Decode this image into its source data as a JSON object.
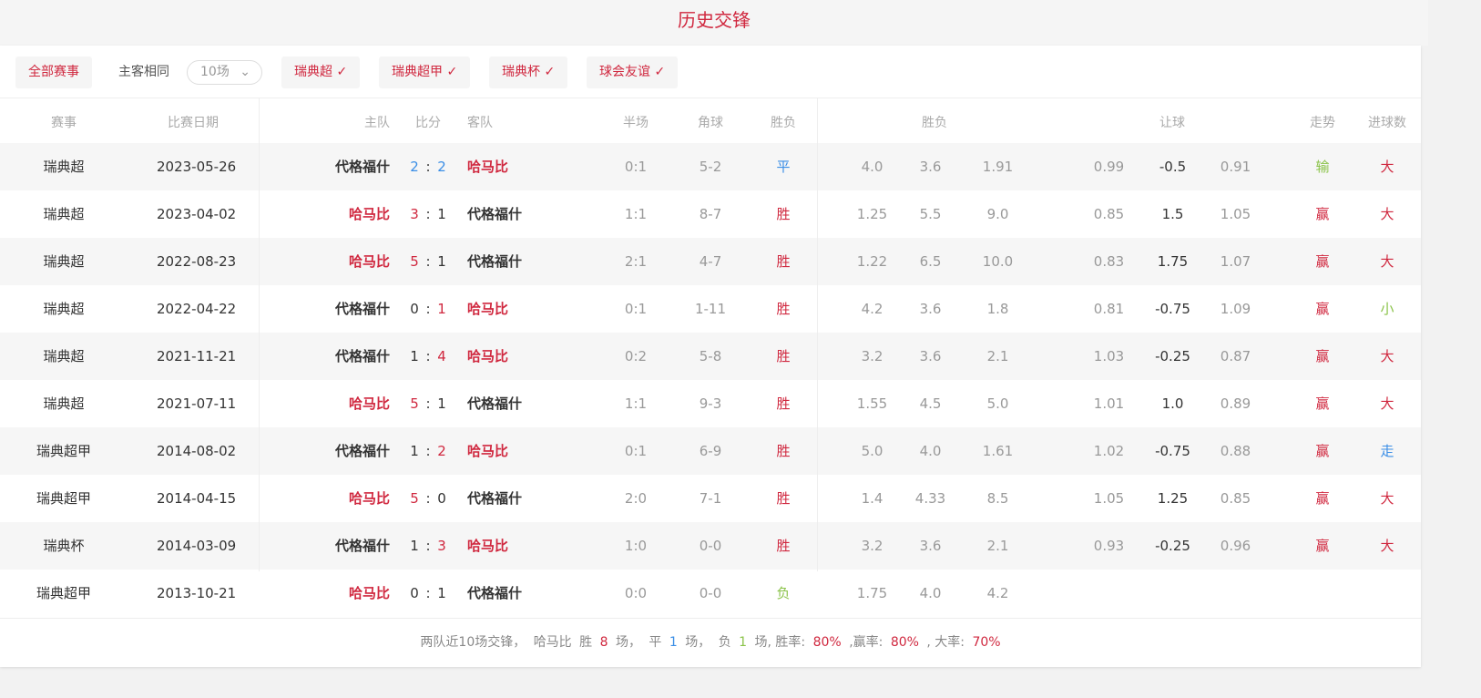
{
  "title": "历史交锋",
  "filters": {
    "all": "全部赛事",
    "same_home_away": "主客相同",
    "count_select": "10场",
    "leagues": [
      "瑞典超",
      "瑞典超甲",
      "瑞典杯",
      "球会友谊"
    ]
  },
  "headers": {
    "league": "赛事",
    "date": "比赛日期",
    "home": "主队",
    "score": "比分",
    "away": "客队",
    "half": "半场",
    "corner": "角球",
    "result": "胜负",
    "odds": "胜负",
    "handicap": "让球",
    "trend": "走势",
    "goals": "进球数"
  },
  "colors": {
    "accent": "#d0283f",
    "draw": "#3a8ee6",
    "lose": "#8bc34a"
  },
  "rows": [
    {
      "league": "瑞典超",
      "date": "2023-05-26",
      "home": "代格福什",
      "hs": "2",
      "as": "2",
      "away": "哈马比",
      "half": "0:1",
      "corner": "5-2",
      "result": "平",
      "o1": "4.0",
      "o2": "3.6",
      "o3": "1.91",
      "h1": "0.99",
      "h2": "-0.5",
      "h3": "0.91",
      "trend": "输",
      "goals": "大"
    },
    {
      "league": "瑞典超",
      "date": "2023-04-02",
      "home": "哈马比",
      "hs": "3",
      "as": "1",
      "away": "代格福什",
      "half": "1:1",
      "corner": "8-7",
      "result": "胜",
      "o1": "1.25",
      "o2": "5.5",
      "o3": "9.0",
      "h1": "0.85",
      "h2": "1.5",
      "h3": "1.05",
      "trend": "赢",
      "goals": "大"
    },
    {
      "league": "瑞典超",
      "date": "2022-08-23",
      "home": "哈马比",
      "hs": "5",
      "as": "1",
      "away": "代格福什",
      "half": "2:1",
      "corner": "4-7",
      "result": "胜",
      "o1": "1.22",
      "o2": "6.5",
      "o3": "10.0",
      "h1": "0.83",
      "h2": "1.75",
      "h3": "1.07",
      "trend": "赢",
      "goals": "大"
    },
    {
      "league": "瑞典超",
      "date": "2022-04-22",
      "home": "代格福什",
      "hs": "0",
      "as": "1",
      "away": "哈马比",
      "half": "0:1",
      "corner": "1-11",
      "result": "胜",
      "o1": "4.2",
      "o2": "3.6",
      "o3": "1.8",
      "h1": "0.81",
      "h2": "-0.75",
      "h3": "1.09",
      "trend": "赢",
      "goals": "小"
    },
    {
      "league": "瑞典超",
      "date": "2021-11-21",
      "home": "代格福什",
      "hs": "1",
      "as": "4",
      "away": "哈马比",
      "half": "0:2",
      "corner": "5-8",
      "result": "胜",
      "o1": "3.2",
      "o2": "3.6",
      "o3": "2.1",
      "h1": "1.03",
      "h2": "-0.25",
      "h3": "0.87",
      "trend": "赢",
      "goals": "大"
    },
    {
      "league": "瑞典超",
      "date": "2021-07-11",
      "home": "哈马比",
      "hs": "5",
      "as": "1",
      "away": "代格福什",
      "half": "1:1",
      "corner": "9-3",
      "result": "胜",
      "o1": "1.55",
      "o2": "4.5",
      "o3": "5.0",
      "h1": "1.01",
      "h2": "1.0",
      "h3": "0.89",
      "trend": "赢",
      "goals": "大"
    },
    {
      "league": "瑞典超甲",
      "date": "2014-08-02",
      "home": "代格福什",
      "hs": "1",
      "as": "2",
      "away": "哈马比",
      "half": "0:1",
      "corner": "6-9",
      "result": "胜",
      "o1": "5.0",
      "o2": "4.0",
      "o3": "1.61",
      "h1": "1.02",
      "h2": "-0.75",
      "h3": "0.88",
      "trend": "赢",
      "goals": "走"
    },
    {
      "league": "瑞典超甲",
      "date": "2014-04-15",
      "home": "哈马比",
      "hs": "5",
      "as": "0",
      "away": "代格福什",
      "half": "2:0",
      "corner": "7-1",
      "result": "胜",
      "o1": "1.4",
      "o2": "4.33",
      "o3": "8.5",
      "h1": "1.05",
      "h2": "1.25",
      "h3": "0.85",
      "trend": "赢",
      "goals": "大"
    },
    {
      "league": "瑞典杯",
      "date": "2014-03-09",
      "home": "代格福什",
      "hs": "1",
      "as": "3",
      "away": "哈马比",
      "half": "1:0",
      "corner": "0-0",
      "result": "胜",
      "o1": "3.2",
      "o2": "3.6",
      "o3": "2.1",
      "h1": "0.93",
      "h2": "-0.25",
      "h3": "0.96",
      "trend": "赢",
      "goals": "大"
    },
    {
      "league": "瑞典超甲",
      "date": "2013-10-21",
      "home": "哈马比",
      "hs": "0",
      "as": "1",
      "away": "代格福什",
      "half": "0:0",
      "corner": "0-0",
      "result": "负",
      "o1": "1.75",
      "o2": "4.0",
      "o3": "4.2",
      "h1": "",
      "h2": "",
      "h3": "",
      "trend": "",
      "goals": ""
    }
  ],
  "summary": {
    "p1": "两队近10场交锋，",
    "team": "哈马比",
    "win_label": "胜",
    "wins": "8",
    "unit1": "场，",
    "draw_label": "平",
    "draws": "1",
    "unit2": "场，",
    "lose_label": "负",
    "losses": "1",
    "unit3": "场, 胜率:",
    "win_rate": "80%",
    "p2": ",赢率:",
    "cover_rate": "80%",
    "p3": ", 大率:",
    "over_rate": "70%"
  }
}
